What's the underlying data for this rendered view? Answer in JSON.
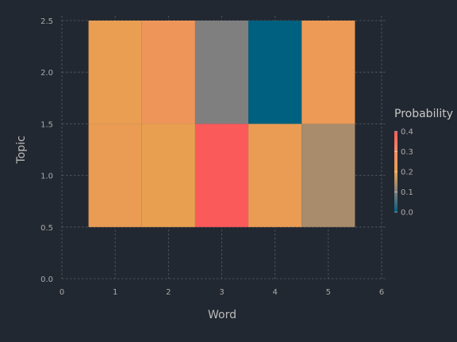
{
  "chart_data": {
    "type": "heatmap",
    "xlabel": "Word",
    "ylabel": "Topic",
    "xlim": [
      0,
      6
    ],
    "ylim": [
      0,
      2.5
    ],
    "x_ticks": [
      "0",
      "1",
      "2",
      "3",
      "4",
      "5",
      "6"
    ],
    "y_ticks": [
      "0.0",
      "0.5",
      "1.0",
      "1.5",
      "2.0",
      "2.5"
    ],
    "x": [
      1,
      2,
      3,
      4,
      5
    ],
    "y": [
      1,
      2
    ],
    "values": [
      [
        0.22,
        0.2,
        0.4,
        0.22,
        0.14
      ],
      [
        0.21,
        0.25,
        0.1,
        0.0,
        0.23
      ]
    ],
    "grid": true,
    "colorbar": {
      "title": "Probability",
      "min": 0.0,
      "max": 0.4,
      "ticks": [
        "0.0",
        "0.1",
        "0.2",
        "0.3",
        "0.4"
      ],
      "colors": [
        "#00607f",
        "#7f7f7f",
        "#e8a050",
        "#f48c64",
        "#fa5a5a"
      ]
    }
  }
}
